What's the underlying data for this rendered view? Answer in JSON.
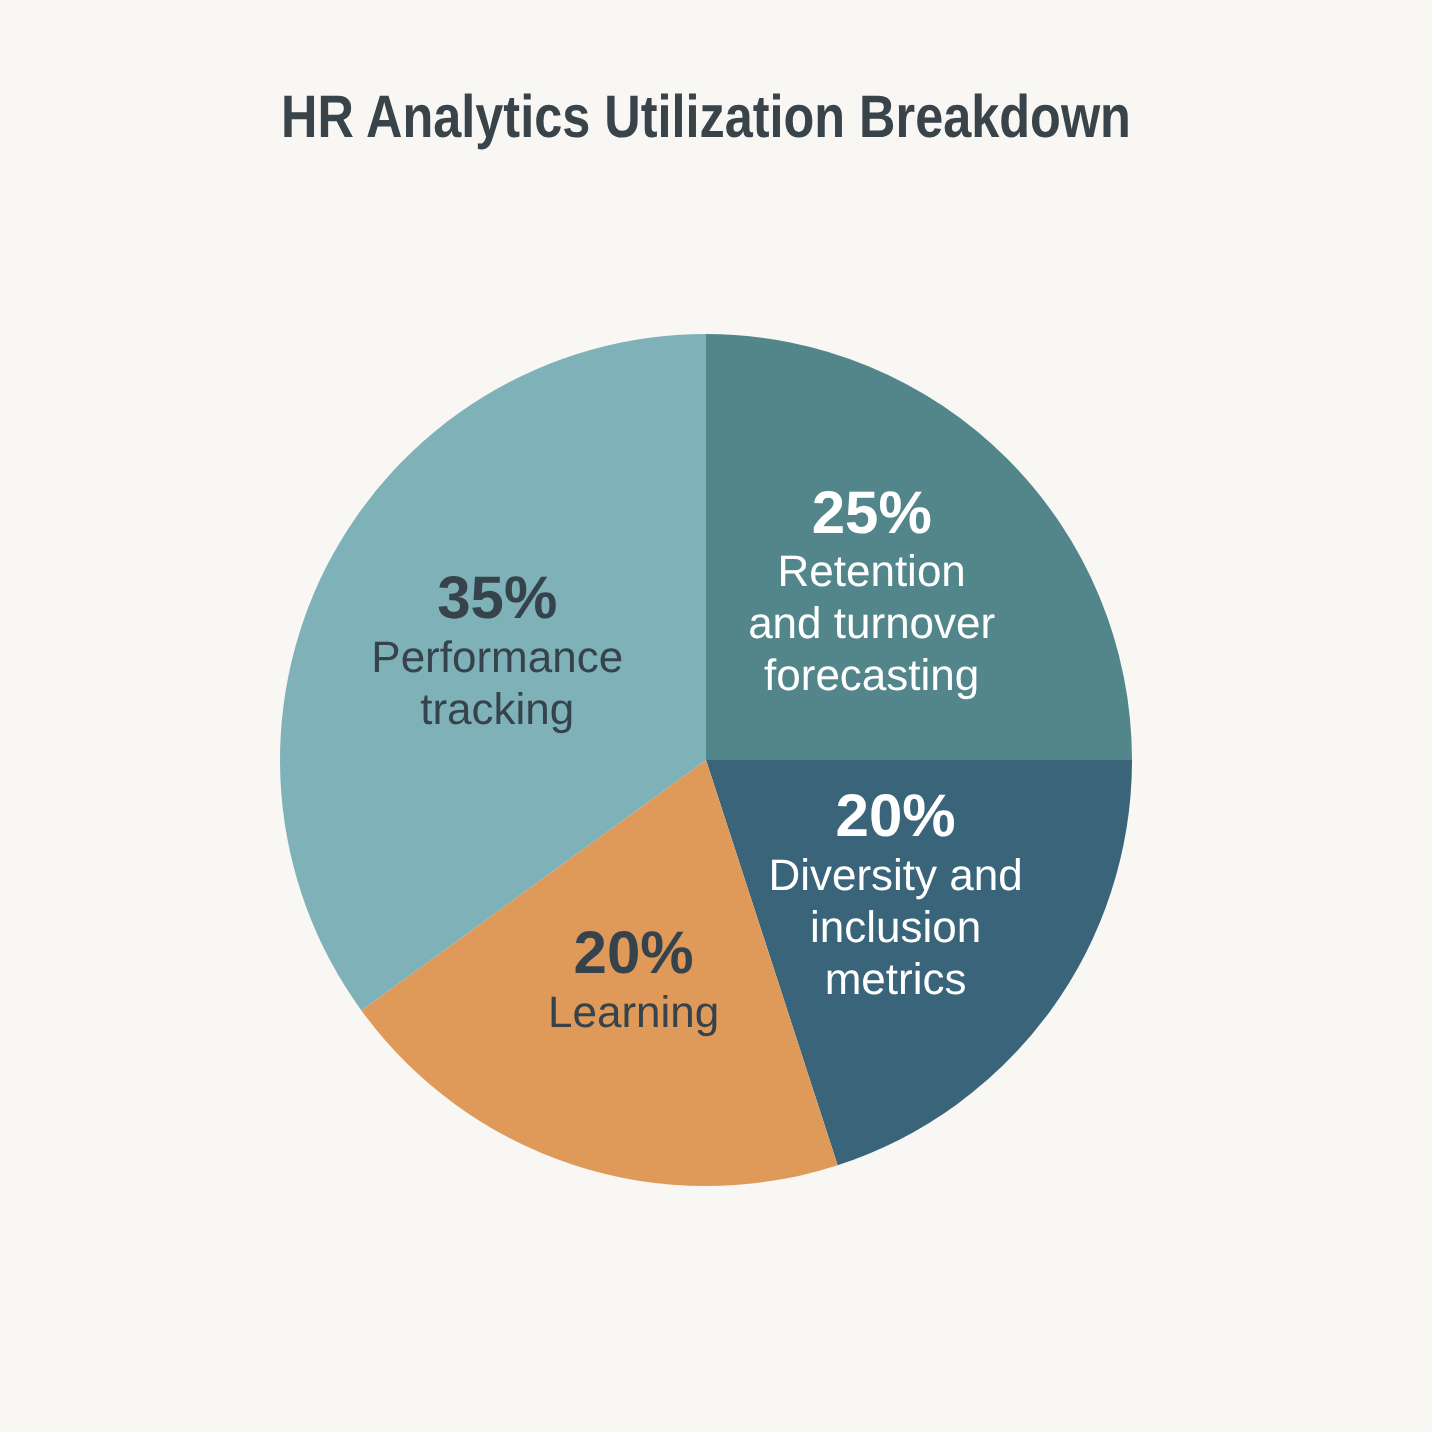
{
  "chart_data": {
    "type": "pie",
    "title": "HR Analytics Utilization Breakdown",
    "categories": [
      "Retention and turnover forecasting",
      "Diversity and inclusion metrics",
      "Learning",
      "Performance tracking"
    ],
    "values": [
      25,
      20,
      20,
      35
    ],
    "colors": [
      "#52868a",
      "#3a6479",
      "#df9a5a",
      "#7fb2b8"
    ],
    "value_labels": [
      "25%",
      "20%",
      "20%",
      "35%"
    ]
  }
}
